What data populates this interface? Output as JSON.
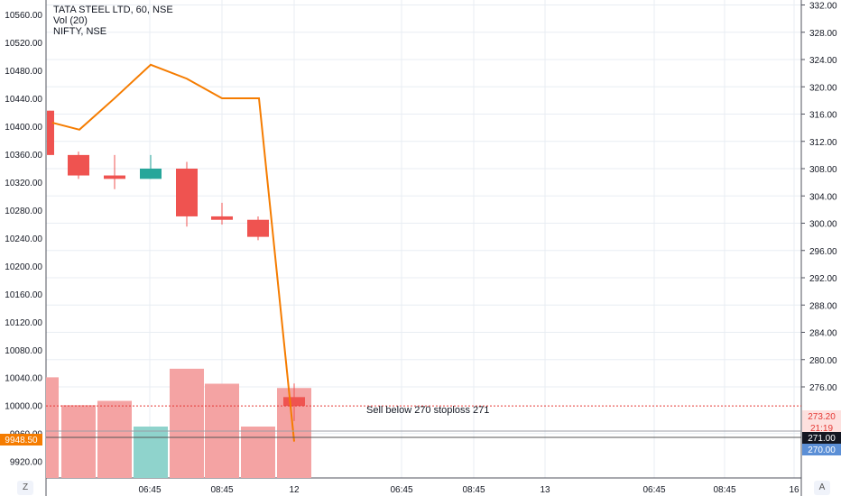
{
  "legend": {
    "line1": "TATA STEEL LTD, 60, NSE",
    "line2": "Vol (20)",
    "line3": "NIFTY, NSE"
  },
  "left_axis_ticks": [
    "10560.00",
    "10520.00",
    "10480.00",
    "10440.00",
    "10400.00",
    "10360.00",
    "10320.00",
    "10280.00",
    "10240.00",
    "10200.00",
    "10160.00",
    "10120.00",
    "10080.00",
    "10040.00",
    "10000.00",
    "9960.00",
    "9920.00"
  ],
  "right_axis_ticks": [
    "332.00",
    "328.00",
    "324.00",
    "320.00",
    "316.00",
    "312.00",
    "308.00",
    "304.00",
    "300.00",
    "296.00",
    "292.00",
    "288.00",
    "284.00",
    "280.00",
    "276.00"
  ],
  "x_axis_ticks": [
    "06:45",
    "08:45",
    "12",
    "06:45",
    "08:45",
    "13",
    "06:45",
    "08:45",
    "16"
  ],
  "annotation": "Sell below 270 stoploss 271",
  "price_labels": {
    "nifty_last": "9948.50",
    "alert": "273.20",
    "countdown": "21:19",
    "last_price": "271.00",
    "level": "270.00"
  },
  "corner_buttons": {
    "left": "Z",
    "right": "A"
  },
  "colors": {
    "up": "#26a69a",
    "down": "#ef5350",
    "volume_down": "#f4a3a3",
    "volume_up": "#8fd3cc",
    "nifty_line": "#f57c00",
    "alert_line": "#e53935",
    "level_badge": "#5b8fd6",
    "grid": "#e8edf3"
  },
  "chart_data": {
    "type": "candlestick",
    "price_axis": {
      "ylim": [
        268,
        333
      ]
    },
    "candles": [
      {
        "o": 316.5,
        "h": 316.5,
        "l": 310.0,
        "c": 310.0
      },
      {
        "o": 310.0,
        "h": 310.5,
        "l": 306.5,
        "c": 307.0
      },
      {
        "o": 307.0,
        "h": 310.0,
        "l": 305.0,
        "c": 306.5
      },
      {
        "o": 306.5,
        "h": 310.0,
        "l": 306.5,
        "c": 308.0
      },
      {
        "o": 308.0,
        "h": 309.0,
        "l": 299.5,
        "c": 301.0
      },
      {
        "o": 301.0,
        "h": 303.0,
        "l": 299.8,
        "c": 300.5
      },
      {
        "o": 300.5,
        "h": 301.0,
        "l": 297.5,
        "c": 298.0
      },
      {
        "o": 274.5,
        "h": 276.5,
        "l": 271.0,
        "c": 273.2
      }
    ],
    "volume": {
      "values": [
        0.47,
        0.34,
        0.36,
        0.24,
        0.51,
        0.44,
        0.24,
        0.42
      ],
      "direction": [
        "down",
        "down",
        "down",
        "up",
        "down",
        "down",
        "down",
        "down"
      ]
    },
    "nifty": {
      "name": "NIFTY, NSE",
      "ylim": [
        9895,
        10580
      ],
      "values": [
        10405,
        10395,
        10440,
        10488,
        10468,
        10440,
        10440,
        9948.5
      ]
    }
  }
}
